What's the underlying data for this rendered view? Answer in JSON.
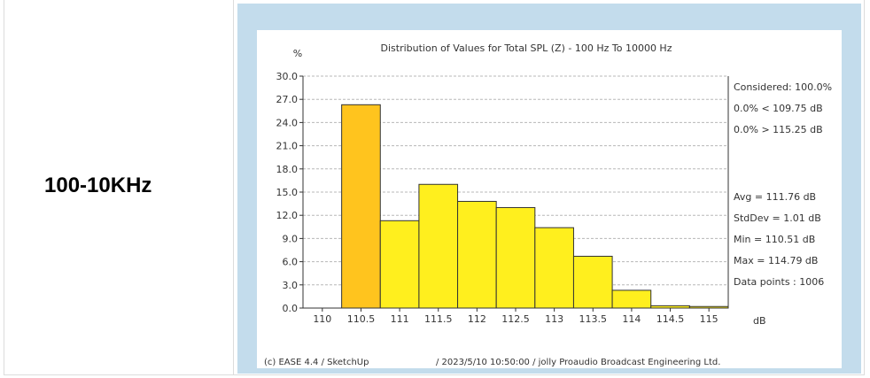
{
  "row_label": "100-10KHz",
  "chart_data": {
    "type": "bar",
    "title": "Distribution of Values for Total SPL (Z) - 100 Hz To 10000 Hz",
    "ylabel": "%",
    "xlabel": "dB",
    "ylim": [
      0,
      30
    ],
    "xlim": [
      109.75,
      115.25
    ],
    "yticks": [
      0.0,
      3.0,
      6.0,
      9.0,
      12.0,
      15.0,
      18.0,
      21.0,
      24.0,
      27.0,
      30.0
    ],
    "ytick_labels": [
      "0.0",
      "3.0",
      "6.0",
      "9.0",
      "12.0",
      "15.0",
      "18.0",
      "21.0",
      "24.0",
      "27.0",
      "30.0"
    ],
    "xticks": [
      110,
      110.5,
      111,
      111.5,
      112,
      112.5,
      113,
      113.5,
      114,
      114.5,
      115
    ],
    "xtick_labels": [
      "110",
      "110.5",
      "111",
      "111.5",
      "112",
      "112.5",
      "113",
      "113.5",
      "114",
      "114.5",
      "115"
    ],
    "grid": true,
    "bars": [
      {
        "x": 110.5,
        "value": 26.3
      },
      {
        "x": 111.0,
        "value": 11.3
      },
      {
        "x": 111.5,
        "value": 16.0
      },
      {
        "x": 112.0,
        "value": 13.8
      },
      {
        "x": 112.5,
        "value": 13.0
      },
      {
        "x": 113.0,
        "value": 10.4
      },
      {
        "x": 113.5,
        "value": 6.7
      },
      {
        "x": 114.0,
        "value": 2.3
      },
      {
        "x": 114.5,
        "value": 0.3
      },
      {
        "x": 115.0,
        "value": 0.2
      }
    ],
    "colors": {
      "bar_fill_first": "#ffc41e",
      "bar_fill": "#ffef1e",
      "bar_stroke": "#333333",
      "grid": "#b8b8b8"
    },
    "stats_top": [
      "Considered: 100.0%",
      "0.0% < 109.75 dB",
      "0.0% > 115.25 dB"
    ],
    "stats_bottom": [
      "Avg = 111.76 dB",
      "StdDev = 1.01 dB",
      "Min = 110.51 dB",
      "Max = 114.79 dB",
      "Data points : 1006"
    ],
    "footer_left": "(c) EASE 4.4 / SketchUp",
    "footer_right": "/ 2023/5/10 10:50:00 / jolly Proaudio Broadcast Engineering Ltd."
  }
}
